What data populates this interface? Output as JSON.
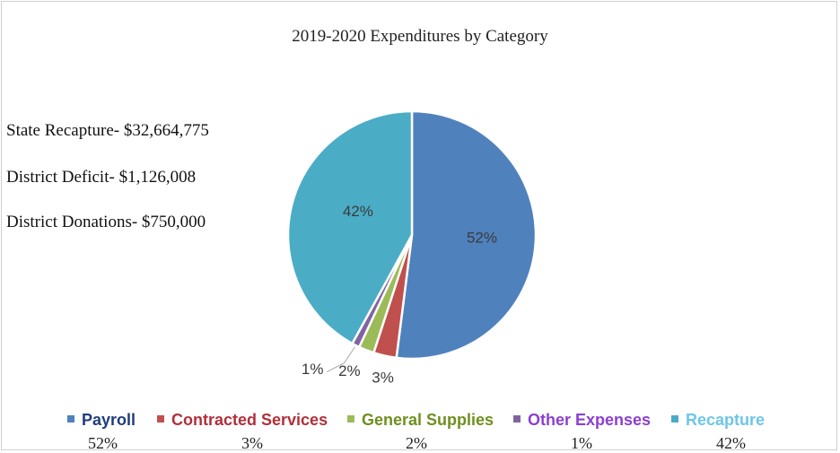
{
  "chart_data": {
    "type": "pie",
    "title": "2019-2020 Expenditures by Category",
    "slices": [
      {
        "name": "Payroll",
        "value": 52,
        "label": "52%",
        "color": "#4f81bd",
        "legend_color": "#1f3d7a"
      },
      {
        "name": "Contracted Services",
        "value": 3,
        "label": "3%",
        "color": "#c0504d",
        "legend_color": "#b0303a"
      },
      {
        "name": "General Supplies",
        "value": 2,
        "label": "2%",
        "color": "#9bbb59",
        "legend_color": "#6f8f1f"
      },
      {
        "name": "Other Expenses",
        "value": 1,
        "label": "1%",
        "color": "#8064a2",
        "legend_color": "#8b3fd0"
      },
      {
        "name": "Recapture",
        "value": 42,
        "label": "42%",
        "color": "#4bacc6",
        "legend_color": "#6ec6e6"
      }
    ],
    "legend_position": "bottom"
  },
  "notes": [
    "State Recapture- $32,664,775",
    "District Deficit- $1,126,008",
    "District Donations-  $750,000"
  ],
  "legend_percentages": [
    "52%",
    "3%",
    "2%",
    "1%",
    "42%"
  ]
}
